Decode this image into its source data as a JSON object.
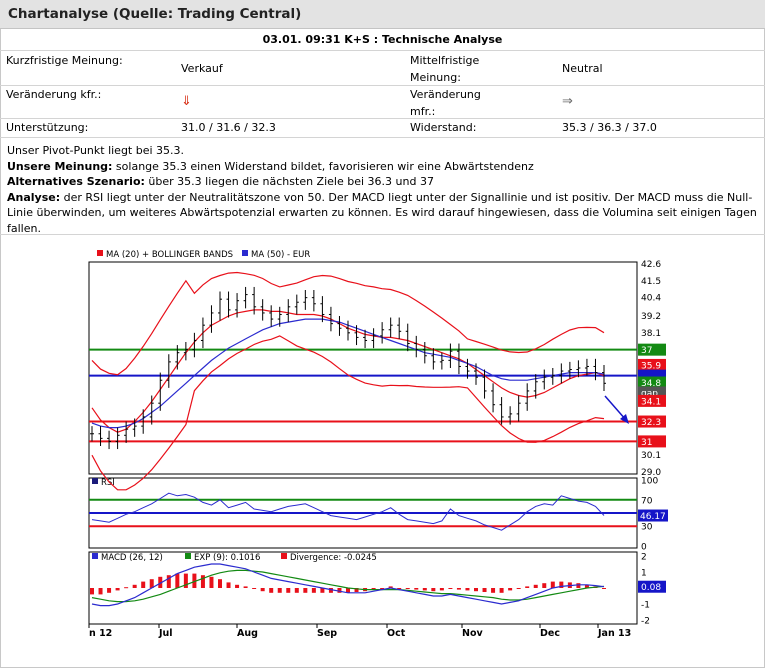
{
  "header": {
    "title": "Chartanalyse (Quelle: Trading Central)"
  },
  "subheader": "03.01. 09:31 K+S : Technische Analyse",
  "summary": {
    "kurz_label": "Kurzfristige Meinung:",
    "kurz_value": "Verkauf",
    "mittel_label": "Mittelfristige Meinung:",
    "mittel_value": "Neutral",
    "ver_kfr_label": "Veränderung kfr.:",
    "ver_kfr_icon": "arrow-down-icon",
    "ver_mfr_label": "Veränderung mfr.:",
    "ver_mfr_icon": "arrow-right-icon",
    "support_label": "Unterstützung:",
    "support_value": "31.0 / 31.6 / 32.3",
    "resistance_label": "Widerstand:",
    "resistance_value": "35.3 / 36.3 / 37.0"
  },
  "analysis": {
    "line1": "Unser Pivot-Punkt liegt bei 35.3.",
    "meinung_label": "Unsere Meinung:",
    "meinung_text": " solange 35.3 einen Widerstand bildet, favorisieren wir eine Abwärtstendenz",
    "alt_label": "Alternatives Szenario:",
    "alt_text": " über 35.3 liegen die nächsten Ziele bei 36.3 und 37",
    "analyse_label": "Analyse:",
    "analyse_text": " der RSI liegt unter der Neutralitätszone von 50. Der MACD liegt unter der Signallinie und ist positiv. Der MACD muss die Null-Linie überwinden, um weiteres Abwärtspotenzial erwarten zu können. Es wird darauf hingewiesen, dass die Volumina seit einigen Tagen fallen."
  },
  "colors": {
    "red": "#e8101a",
    "blue": "#1515c8",
    "green": "#138a13",
    "black": "#000000",
    "legend_blue": "#2b2bcf"
  },
  "chart_data": {
    "type": "line",
    "x_months": [
      "n 12",
      "Jul",
      "Aug",
      "Sep",
      "Oct",
      "Nov",
      "Dec",
      "Jan 13"
    ],
    "price_panel": {
      "legend": [
        "MA (20) + BOLLINGER BANDS",
        "MA (50) - EUR"
      ],
      "ylim": [
        29.0,
        42.6
      ],
      "y_ticks": [
        "42.6",
        "41.5",
        "40.4",
        "39.2",
        "38.1",
        "37",
        "35.9",
        "34.8",
        "32.3",
        "31",
        "30.1",
        "29.0"
      ],
      "level_labels": {
        "resistance_top": "37",
        "ma_upper": "35.9",
        "last": "34.8",
        "gap": "gap",
        "low_red": "34.1",
        "support1": "32.3",
        "support2": "31"
      },
      "levels": {
        "green": 37.0,
        "blue": 35.3,
        "red1": 32.3,
        "red2": 31.0
      },
      "close": [
        31.5,
        31.2,
        31.0,
        31.4,
        31.8,
        32.0,
        32.6,
        33.5,
        35.0,
        36.2,
        36.8,
        37.0,
        37.6,
        38.6,
        39.4,
        40.3,
        39.6,
        40.2,
        40.6,
        39.8,
        39.4,
        39.0,
        39.3,
        39.8,
        40.1,
        40.4,
        40.0,
        39.3,
        38.7,
        38.4,
        38.1,
        37.8,
        37.6,
        37.9,
        38.3,
        38.6,
        38.2,
        37.4,
        37.0,
        36.6,
        36.2,
        36.3,
        36.9,
        35.9,
        35.6,
        35.2,
        34.3,
        33.4,
        32.6,
        32.8,
        33.5,
        34.3,
        34.9,
        35.2,
        35.3,
        35.6,
        35.7,
        35.8,
        35.9,
        35.5,
        34.8
      ],
      "ma20": [
        33.2,
        32.4,
        31.9,
        31.6,
        31.8,
        32.3,
        32.9,
        33.6,
        34.4,
        35.2,
        36.0,
        36.8,
        37.5,
        38.1,
        38.6,
        38.9,
        39.2,
        39.4,
        39.5,
        39.6,
        39.6,
        39.5,
        39.5,
        39.4,
        39.3,
        39.3,
        39.3,
        39.2,
        39.0,
        38.7,
        38.4,
        38.2,
        38.0,
        37.9,
        37.8,
        37.8,
        37.7,
        37.6,
        37.4,
        37.2,
        37.0,
        36.8,
        36.6,
        36.4,
        36.1,
        35.7,
        35.3,
        34.9,
        34.5,
        34.2,
        34.0,
        33.9,
        34.0,
        34.2,
        34.5,
        34.8,
        35.1,
        35.3,
        35.4,
        35.5,
        35.3
      ],
      "ma50": [
        32.2,
        32.0,
        31.9,
        31.9,
        32.0,
        32.2,
        32.5,
        32.9,
        33.3,
        33.8,
        34.3,
        34.8,
        35.3,
        35.8,
        36.3,
        36.7,
        37.1,
        37.4,
        37.7,
        38.0,
        38.3,
        38.5,
        38.7,
        38.8,
        38.9,
        39.0,
        39.0,
        39.0,
        38.9,
        38.8,
        38.6,
        38.4,
        38.2,
        38.0,
        37.8,
        37.6,
        37.4,
        37.2,
        37.0,
        36.8,
        36.7,
        36.6,
        36.5,
        36.3,
        36.1,
        35.9,
        35.6,
        35.3,
        35.1,
        35.0,
        35.0,
        35.0,
        35.1,
        35.2,
        35.3,
        35.4,
        35.5,
        35.5,
        35.5,
        35.5,
        35.4
      ]
    },
    "rsi_panel": {
      "legend": [
        "RSI"
      ],
      "ylim": [
        0,
        100
      ],
      "y_ticks": [
        "100",
        "70",
        "30",
        "0"
      ],
      "last_label": "46.17",
      "levels": {
        "green": 70,
        "blue": 50,
        "red": 30
      },
      "values": [
        40,
        38,
        36,
        42,
        48,
        52,
        58,
        64,
        72,
        80,
        76,
        78,
        74,
        66,
        62,
        70,
        58,
        62,
        66,
        56,
        54,
        52,
        56,
        60,
        62,
        64,
        58,
        52,
        46,
        44,
        42,
        40,
        44,
        48,
        52,
        58,
        48,
        40,
        38,
        36,
        34,
        38,
        56,
        46,
        42,
        38,
        32,
        28,
        24,
        32,
        40,
        52,
        60,
        64,
        62,
        76,
        72,
        68,
        66,
        60,
        46.17
      ]
    },
    "macd_panel": {
      "legend": [
        "MACD (26, 12)",
        "EXP (9): 0.1016",
        "Divergence: -0.0245"
      ],
      "ylim": [
        -2,
        2
      ],
      "y_ticks": [
        "2",
        "1",
        "0",
        "-1",
        "-2"
      ],
      "last_label": "0.08",
      "macd": [
        -1.0,
        -1.1,
        -1.1,
        -1.0,
        -0.8,
        -0.6,
        -0.3,
        0.0,
        0.3,
        0.6,
        0.9,
        1.1,
        1.3,
        1.4,
        1.5,
        1.5,
        1.4,
        1.3,
        1.2,
        1.0,
        0.8,
        0.6,
        0.5,
        0.4,
        0.3,
        0.2,
        0.1,
        0.0,
        -0.1,
        -0.2,
        -0.3,
        -0.3,
        -0.3,
        -0.2,
        -0.1,
        0.0,
        -0.1,
        -0.2,
        -0.3,
        -0.4,
        -0.5,
        -0.5,
        -0.4,
        -0.5,
        -0.6,
        -0.7,
        -0.8,
        -0.9,
        -1.0,
        -0.9,
        -0.8,
        -0.6,
        -0.4,
        -0.2,
        0.0,
        0.1,
        0.15,
        0.2,
        0.2,
        0.15,
        0.08
      ],
      "signal": [
        -0.6,
        -0.7,
        -0.8,
        -0.85,
        -0.85,
        -0.8,
        -0.7,
        -0.55,
        -0.4,
        -0.2,
        0.0,
        0.2,
        0.4,
        0.6,
        0.8,
        0.95,
        1.05,
        1.1,
        1.1,
        1.05,
        1.0,
        0.9,
        0.8,
        0.7,
        0.6,
        0.5,
        0.4,
        0.3,
        0.2,
        0.1,
        0.0,
        -0.05,
        -0.1,
        -0.1,
        -0.1,
        -0.1,
        -0.1,
        -0.15,
        -0.2,
        -0.25,
        -0.3,
        -0.35,
        -0.35,
        -0.4,
        -0.45,
        -0.5,
        -0.55,
        -0.6,
        -0.7,
        -0.75,
        -0.75,
        -0.7,
        -0.6,
        -0.5,
        -0.4,
        -0.3,
        -0.2,
        -0.1,
        0.0,
        0.05,
        0.1016
      ]
    }
  }
}
